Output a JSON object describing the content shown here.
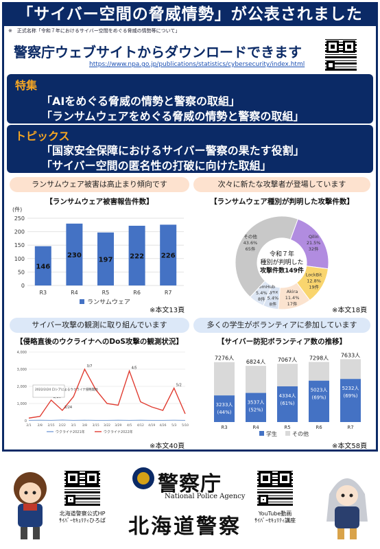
{
  "header": {
    "title": "「サイバー空間の脅威情勢」が公表されました",
    "subnote": "※　正式名称「令和７年におけるサイバー空間をめぐる脅威の情勢等について」"
  },
  "download": {
    "heading": "警察庁ウェブサイトからダウンロードできます",
    "url": "https://www.npa.go.jp/publications/statistics/cybersecurity/index.html"
  },
  "special": {
    "label": "特集",
    "items": [
      "「AIをめぐる脅威の情勢と警察の取組」",
      "「ランサムウェアをめぐる脅威の情勢と警察の取組」"
    ]
  },
  "topics": {
    "label": "トピックス",
    "items": [
      "「国家安全保障におけるサイバー警察の果たす役割」",
      "「サイバー空間の匿名性の打破に向けた取組」"
    ]
  },
  "panel1": {
    "label": "ランサムウェア被害は高止まり傾向です",
    "title": "【ランサムウェア被害報告件数】",
    "page_ref": "※本文13頁"
  },
  "panel2": {
    "label": "次々に新たな攻撃者が登場しています",
    "title": "【ランサムウェア種別が判明した攻撃件数】",
    "center_text": [
      "令和７年",
      "種別が判明した",
      "攻撃件数149件"
    ],
    "page_ref": "※本文18頁"
  },
  "panel3": {
    "label": "サイバー攻撃の観測に取り組んでいます",
    "title": "【侵略直後のウクライナへのDoS攻撃の観測状況】",
    "page_ref": "※本文40頁"
  },
  "panel4": {
    "label": "多くの学生がボランティアに参加しています",
    "title": "【サイバー防犯ボランティア数の推移】",
    "page_ref": "※本文58頁"
  },
  "footer": {
    "qr_left_caption": [
      "北海道警察公式HP",
      "ｻｲﾊﾞｰｾｷｭﾘﾃｨひろば"
    ],
    "npa_jp": "警察庁",
    "npa_en": "National Police Agency",
    "hokkaido": "北海道警察",
    "qr_right_caption": [
      "YouTube動画",
      "ｻｲﾊﾞｰｾｷｭﾘﾃｨ講座"
    ]
  },
  "colors": {
    "navy": "#0b2a66",
    "orange_label": "#f5a623",
    "bar_blue": "#4472c4",
    "stack_gray": "#d9d9d9",
    "line_red": "#e03c31"
  },
  "chart_data": [
    {
      "type": "bar",
      "unit_label": "(件)",
      "categories": [
        "R3",
        "R4",
        "R5",
        "R6",
        "R7"
      ],
      "series": [
        {
          "name": "ランサムウェア",
          "values": [
            146,
            230,
            197,
            222,
            226
          ]
        }
      ],
      "ylim": [
        0,
        250
      ],
      "yticks": [
        0,
        50,
        100,
        150,
        200,
        250
      ],
      "legend": "bottom"
    },
    {
      "type": "pie",
      "labels": [
        "Qilin",
        "LockBit",
        "Akira",
        "Lynx",
        "RansomHub",
        "その他"
      ],
      "percents": [
        "21.5%",
        "12.8%",
        "11.4%",
        "5.4%",
        "5.4%",
        "43.6%"
      ],
      "values": [
        32,
        19,
        17,
        8,
        8,
        65
      ],
      "value_labels": [
        "32件",
        "19件",
        "17件",
        "8件",
        "8件",
        "65件"
      ],
      "colors": [
        "#b18ce0",
        "#f9d56e",
        "#fbe3cf",
        "#d9e3f2",
        "#dde6f3",
        "#c8c8c8"
      ]
    },
    {
      "type": "line",
      "yticks": [
        "0",
        "1,000",
        "2,000",
        "3,000",
        "4,000"
      ],
      "xticks": [
        "2/1",
        "2/8",
        "2/15",
        "2/22",
        "3/1",
        "3/8",
        "3/15",
        "3/22",
        "3/29",
        "4/5",
        "4/12",
        "4/19",
        "4/26",
        "5/3",
        "5/10"
      ],
      "annotations": [
        "2/16",
        "2/24",
        "3/7",
        "4/5",
        "5/2"
      ],
      "note": "2022/2/24 ロシアによるウクライナ侵略開始",
      "series": [
        {
          "name": "ウクライナ2021年",
          "values": [
            20,
            30,
            20,
            40,
            20,
            30,
            20,
            20,
            30,
            20,
            30,
            20,
            20,
            30,
            20
          ]
        },
        {
          "name": "ウクライナ2022年",
          "values": [
            150,
            250,
            1200,
            600,
            1400,
            3000,
            1800,
            1000,
            900,
            2900,
            1100,
            800,
            600,
            1900,
            400
          ]
        }
      ]
    },
    {
      "type": "bar",
      "categories": [
        "R3",
        "R4",
        "R5",
        "R6",
        "R7"
      ],
      "totals": [
        "7276人",
        "6824人",
        "7067人",
        "7298人",
        "7633人"
      ],
      "total_values": [
        7276,
        6824,
        7067,
        7298,
        7633
      ],
      "series": [
        {
          "name": "学生",
          "values": [
            3233,
            3537,
            4334,
            5023,
            5232
          ],
          "labels": [
            "3233人",
            "3537人",
            "4334人",
            "5023人",
            "5232人"
          ],
          "pct": [
            "(44%)",
            "(52%)",
            "(61%)",
            "(69%)",
            "(69%)"
          ]
        },
        {
          "name": "その他",
          "values": [
            4043,
            3287,
            2733,
            2275,
            2401
          ]
        }
      ],
      "legend": "bottom"
    }
  ]
}
